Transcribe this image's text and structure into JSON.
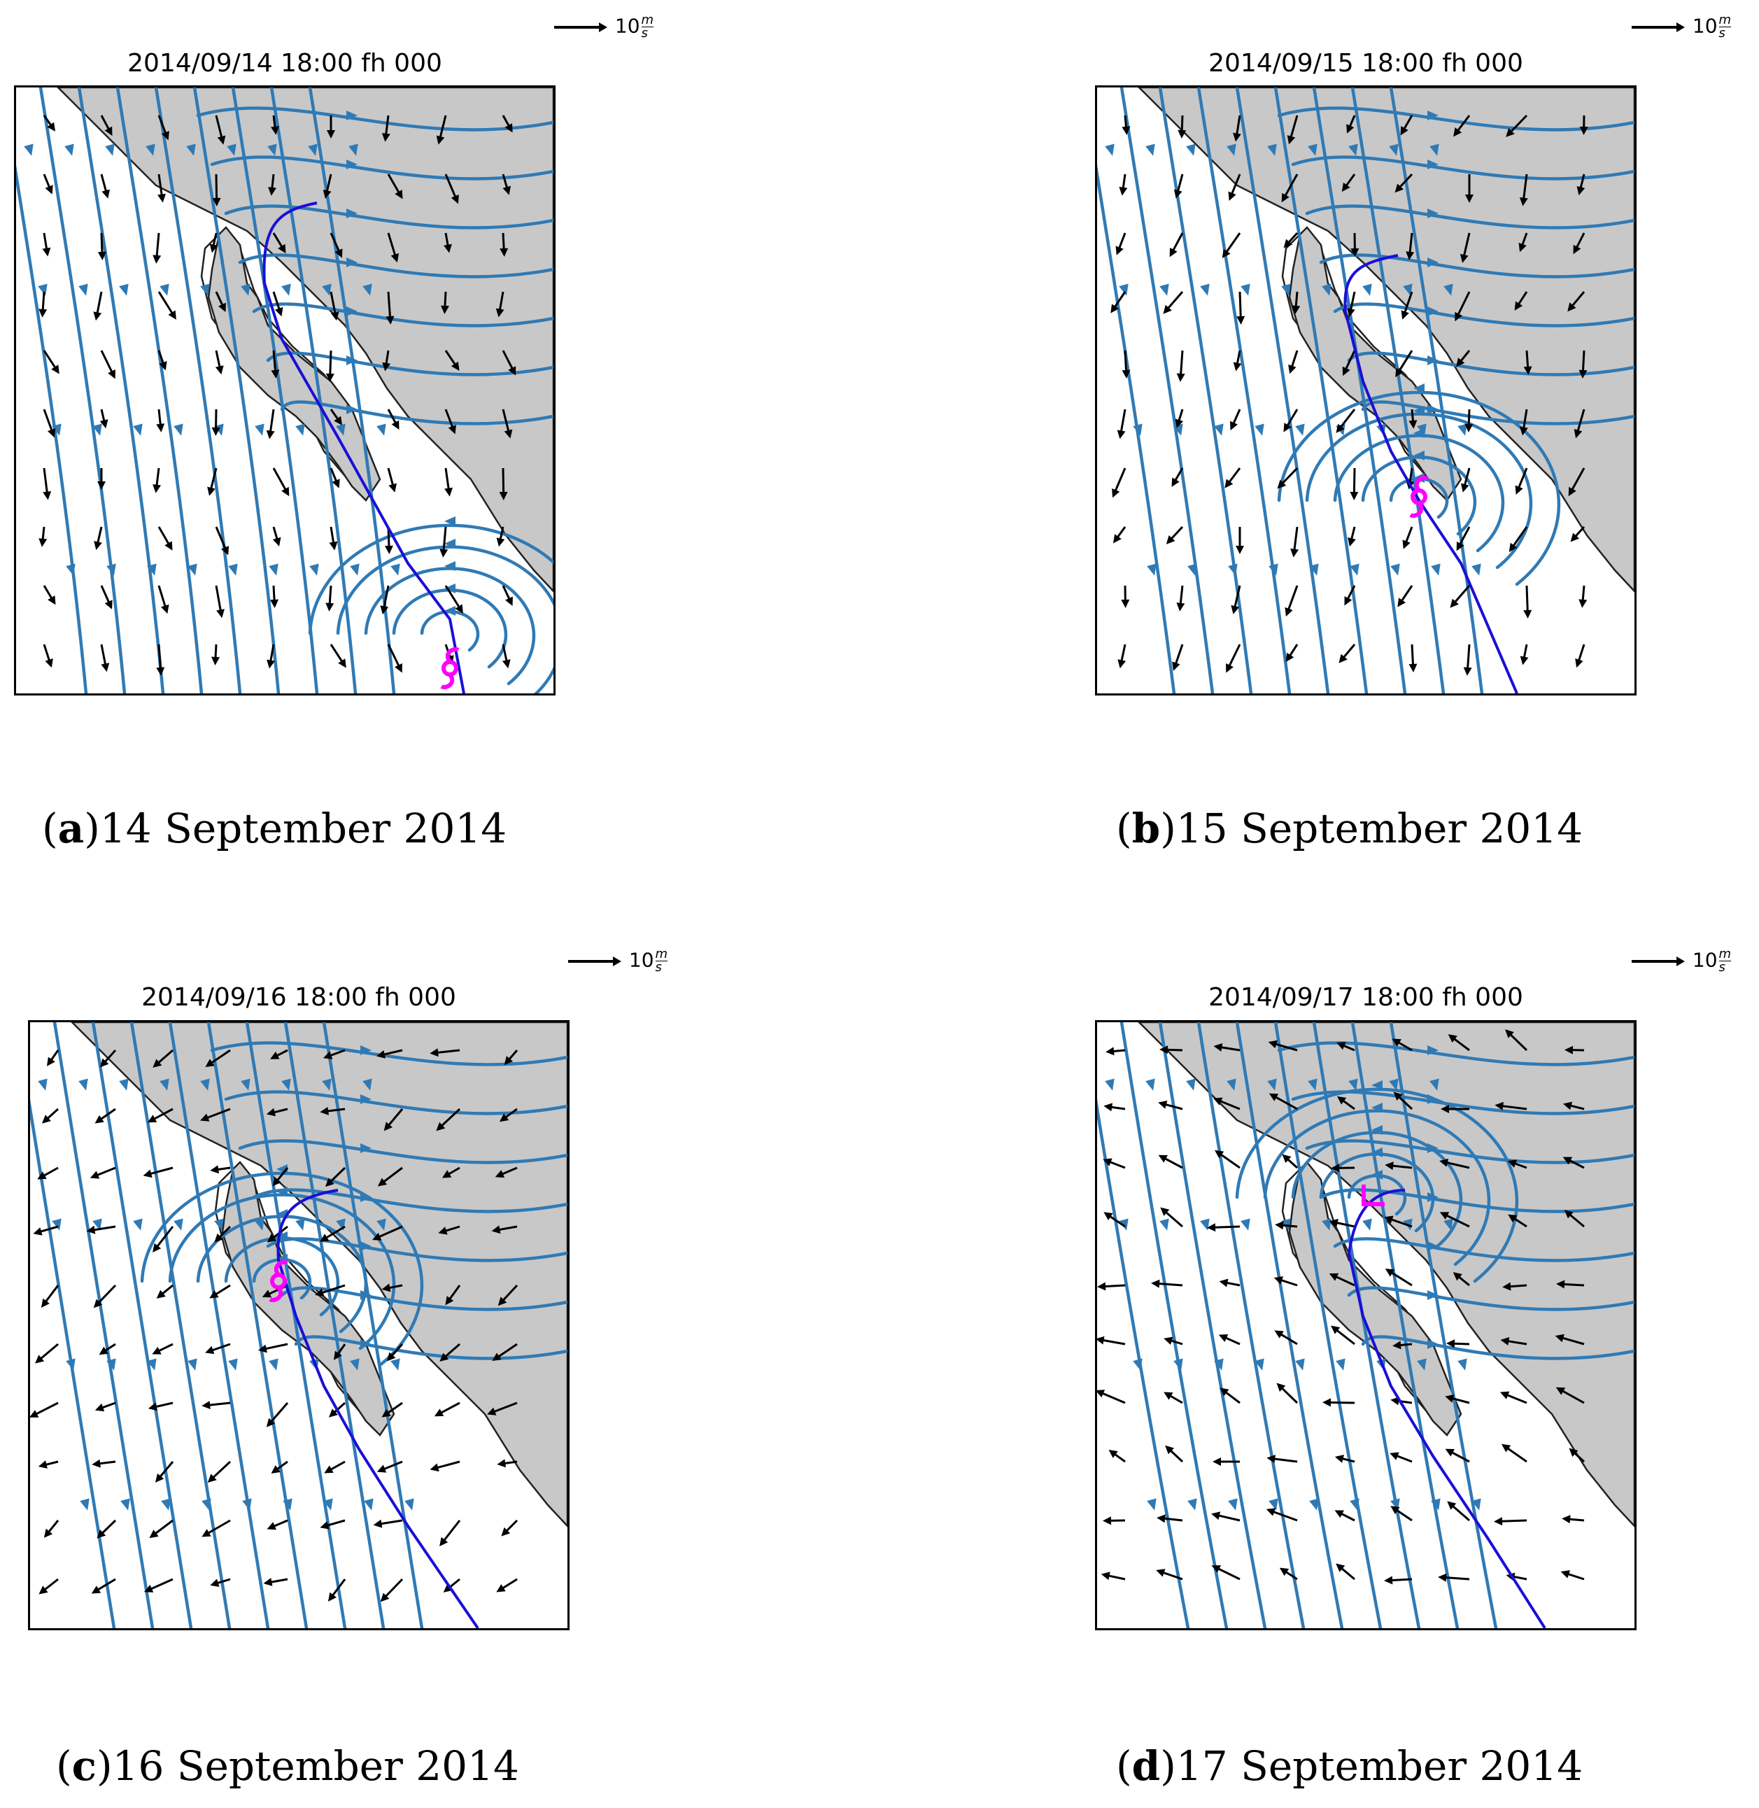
{
  "panels": [
    {
      "id": "a",
      "title": "2014/09/14 18:00 fh 000",
      "scale_value": "10",
      "scale_unit_num": "m",
      "scale_unit_den": "s",
      "caption_letter": "a",
      "caption_text": "14 September 2014",
      "storm_symbol": "hurricane-icon"
    },
    {
      "id": "b",
      "title": "2014/09/15 18:00 fh 000",
      "scale_value": "10",
      "scale_unit_num": "m",
      "scale_unit_den": "s",
      "caption_letter": "b",
      "caption_text": "15 September 2014",
      "storm_symbol": "hurricane-icon"
    },
    {
      "id": "c",
      "title": "2014/09/16 18:00 fh 000",
      "scale_value": "10",
      "scale_unit_num": "m",
      "scale_unit_den": "s",
      "caption_letter": "c",
      "caption_text": "16 September 2014",
      "storm_symbol": "hurricane-icon"
    },
    {
      "id": "d",
      "title": "2014/09/17 18:00 fh 000",
      "scale_value": "10",
      "scale_unit_num": "m",
      "scale_unit_den": "s",
      "caption_letter": "d",
      "caption_text": "17 September 2014",
      "storm_symbol": "low-pressure-icon"
    }
  ],
  "colors": {
    "land": "#c8c8c8",
    "ocean": "#ffffff",
    "streamline": "#2f7ab5",
    "track": "#1a0fd6",
    "storm_marker": "#ff00ff",
    "wind_vector": "#000000"
  }
}
